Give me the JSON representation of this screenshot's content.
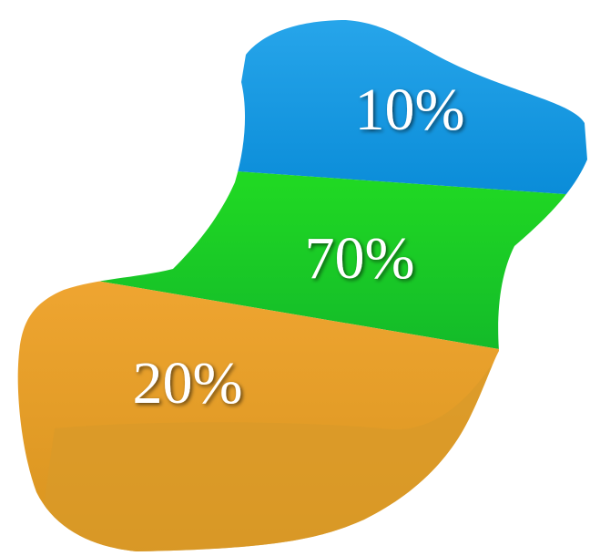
{
  "regions": [
    {
      "label": "10%"
    },
    {
      "label": "70%"
    },
    {
      "label": "20%"
    }
  ]
}
